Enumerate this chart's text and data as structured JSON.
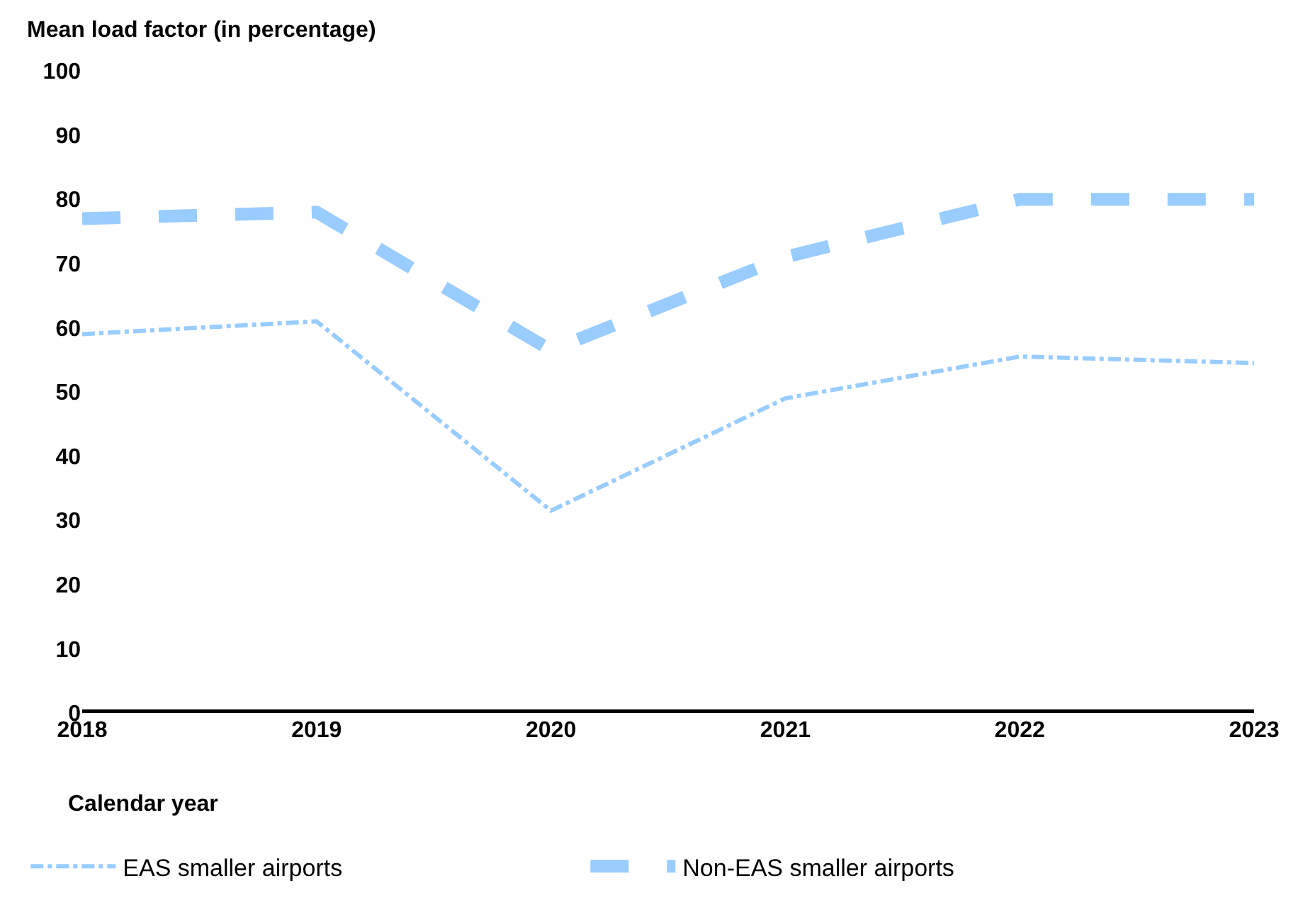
{
  "chart_data": {
    "type": "line",
    "ylabel": "Mean load factor (in percentage)",
    "xlabel": "Calendar year",
    "x": [
      2018,
      2019,
      2020,
      2021,
      2022,
      2023
    ],
    "xlim": [
      2018,
      2023
    ],
    "xticks": [
      2018,
      2019,
      2020,
      2021,
      2022,
      2023
    ],
    "ylim": [
      0,
      100
    ],
    "yticks": [
      0,
      10,
      20,
      30,
      40,
      50,
      60,
      70,
      80,
      90,
      100
    ],
    "grid": false,
    "legend": "bottom",
    "marker": "none",
    "series": [
      {
        "name": "EAS smaller airports",
        "color": "#99ccff",
        "values": [
          59,
          61,
          31.5,
          49,
          55.5,
          54.5
        ],
        "line_style": "dashdot"
      },
      {
        "name": "Non-EAS smaller airports",
        "color": "#99ccff",
        "values": [
          77,
          78,
          56.5,
          71,
          80,
          80
        ],
        "line_style": "dashed"
      }
    ]
  }
}
